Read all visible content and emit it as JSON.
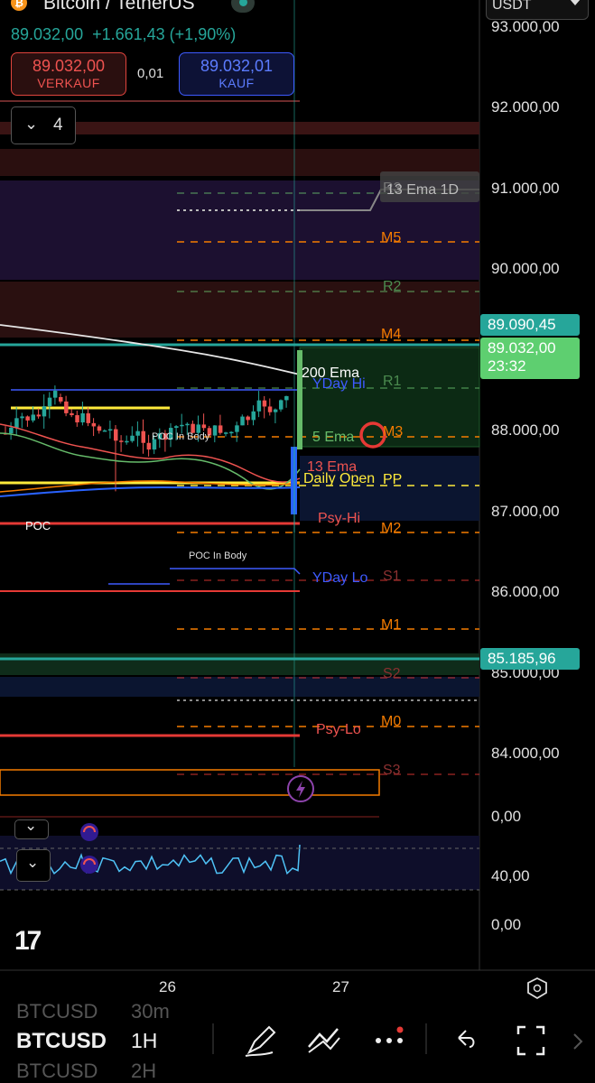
{
  "header": {
    "title": "Bitcoin / TetherUS",
    "last_price": "89.032,00",
    "change": "+1.661,43 (+1,90%)",
    "sell_price": "89.032,00",
    "sell_label": "VERKAUF",
    "buy_price": "89.032,01",
    "buy_label": "KAUF",
    "spread": "0,01",
    "currency": "USDT",
    "indicator_count": "4"
  },
  "price_axis": {
    "labels": [
      "93.000,00",
      "92.000,00",
      "91.000,00",
      "90.000,00",
      "88.000,00",
      "87.000,00",
      "86.000,00",
      "85.000,00",
      "84.000,00"
    ],
    "tag_upper": "89.090,45",
    "tag_current_price": "89.032,00",
    "tag_current_time": "23:32",
    "tag_lower": "85.185,96",
    "osc_labels": [
      "0,00",
      "40,00",
      "0,00"
    ]
  },
  "levels": {
    "m5": "M5",
    "r2": "R2",
    "m4": "M4",
    "r1": "R1",
    "m3": "M3",
    "pp": "PP",
    "m2": "M2",
    "s1": "S1",
    "m1": "M1",
    "s2": "S2",
    "m0": "M0",
    "s3": "S3",
    "r3": "R3"
  },
  "annotations": {
    "ema13_1d": "13 Ema 1D",
    "ema200": "200 Ema",
    "yday_hi": "YDay Hi",
    "ema5": "5 Ema",
    "ema13": "13 Ema",
    "daily_open": "Daily Open",
    "psy_hi": "Psy-Hi",
    "poc": "POC",
    "poc_in_body_top": "POC In Body",
    "poc_in_body_bottom": "POC In Body",
    "yday_lo": "YDay Lo",
    "psy_lo": "Psy-Lo"
  },
  "time_axis": {
    "labels": [
      "26",
      "27"
    ]
  },
  "toolbar": {
    "symbol": "BTCUSD",
    "timeframe": "1H",
    "ghost_symbol_above": "BTCUSD",
    "ghost_tf_above": "30m",
    "ghost_symbol_below": "BTCUSD",
    "ghost_tf_below": "2H",
    "icons": [
      "pencil-icon",
      "drawing-tools-icon",
      "more-icon",
      "undo-icon",
      "fullscreen-icon"
    ]
  },
  "colors": {
    "bull": "#26a69a",
    "bear": "#ef5350",
    "accent_blue": "#2962ff",
    "level_orange": "#f57c00",
    "level_green": "#66bb6a",
    "level_red": "#e53935",
    "pp_yellow": "#ffeb3b"
  }
}
